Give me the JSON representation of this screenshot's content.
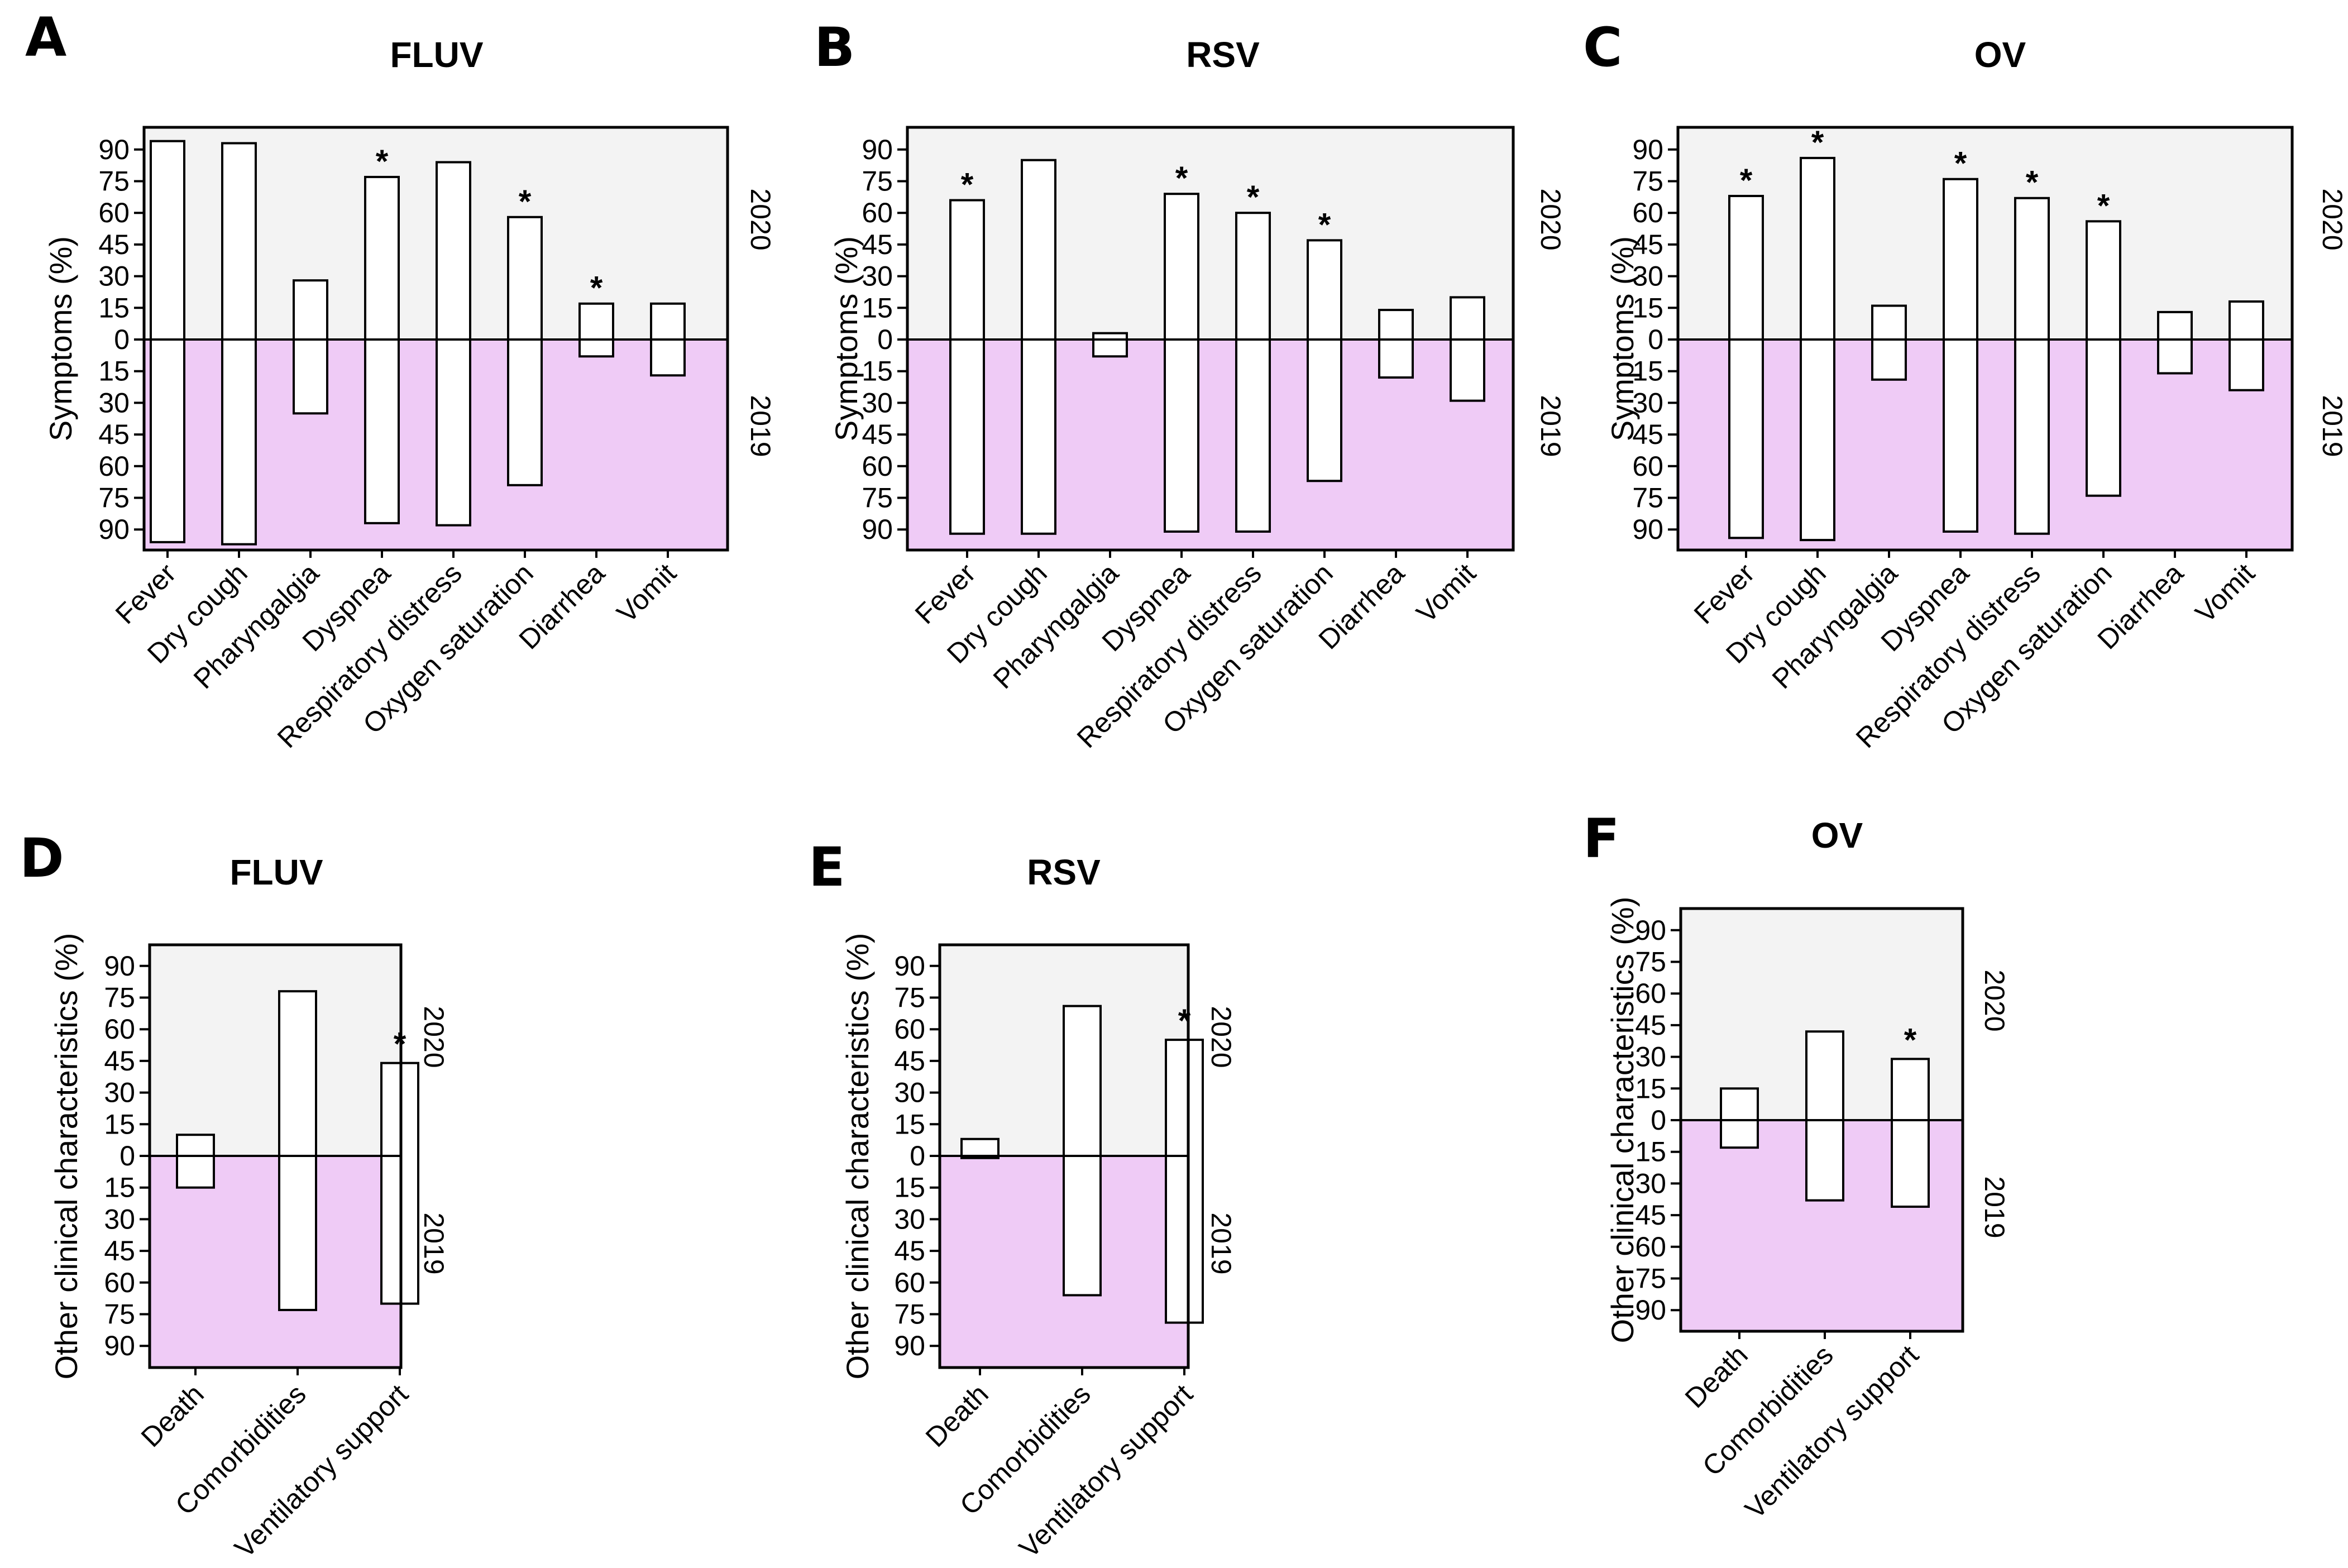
{
  "colors": {
    "top_bg": "#f3f3f3",
    "bottom_bg": "#efcbf6",
    "bar_fill": "#ffffff",
    "stroke": "#000000"
  },
  "chart_data": [
    {
      "panel": "A",
      "title": "FLUV",
      "type": "bar",
      "ylabel": "Symptoms (%)",
      "ylim": [
        -100,
        100
      ],
      "yticks": [
        "90",
        "75",
        "60",
        "45",
        "30",
        "15",
        "0",
        "15",
        "30",
        "45",
        "60",
        "75",
        "90"
      ],
      "top_label": "2020",
      "bottom_label": "2019",
      "categories": [
        "Fever",
        "Dry cough",
        "Pharyngalgia",
        "Dyspnea",
        "Respiratory distress",
        "Oxygen saturation",
        "Diarrhea",
        "Vomit"
      ],
      "series": [
        {
          "name": "2020",
          "values": [
            94,
            93,
            28,
            77,
            84,
            58,
            17,
            17
          ]
        },
        {
          "name": "2019",
          "values": [
            96,
            97,
            35,
            87,
            88,
            69,
            8,
            17
          ]
        }
      ],
      "significance": [
        "",
        "",
        "",
        "*",
        "",
        "*",
        "*",
        ""
      ]
    },
    {
      "panel": "B",
      "title": "RSV",
      "type": "bar",
      "ylabel": "Symptoms (%)",
      "ylim": [
        -100,
        100
      ],
      "yticks": [
        "90",
        "75",
        "60",
        "45",
        "30",
        "15",
        "0",
        "15",
        "30",
        "45",
        "60",
        "75",
        "90"
      ],
      "top_label": "2020",
      "bottom_label": "2019",
      "categories": [
        "Fever",
        "Dry cough",
        "Pharyngalgia",
        "Dyspnea",
        "Respiratory distress",
        "Oxygen saturation",
        "Diarrhea",
        "Vomit"
      ],
      "series": [
        {
          "name": "2020",
          "values": [
            66,
            85,
            3,
            69,
            60,
            47,
            14,
            20
          ]
        },
        {
          "name": "2019",
          "values": [
            92,
            92,
            8,
            91,
            91,
            67,
            18,
            29
          ]
        }
      ],
      "significance": [
        "*",
        "",
        "",
        "*",
        "*",
        "*",
        "",
        ""
      ]
    },
    {
      "panel": "C",
      "title": "OV",
      "type": "bar",
      "ylabel": "Symptoms (%)",
      "ylim": [
        -100,
        100
      ],
      "yticks": [
        "90",
        "75",
        "60",
        "45",
        "30",
        "15",
        "0",
        "15",
        "30",
        "45",
        "60",
        "75",
        "90"
      ],
      "top_label": "2020",
      "bottom_label": "2019",
      "categories": [
        "Fever",
        "Dry cough",
        "Pharyngalgia",
        "Dyspnea",
        "Respiratory distress",
        "Oxygen saturation",
        "Diarrhea",
        "Vomit"
      ],
      "series": [
        {
          "name": "2020",
          "values": [
            68,
            86,
            16,
            76,
            67,
            56,
            13,
            18
          ]
        },
        {
          "name": "2019",
          "values": [
            94,
            95,
            19,
            91,
            92,
            74,
            16,
            24
          ]
        }
      ],
      "significance": [
        "*",
        "*",
        "",
        "*",
        "*",
        "*",
        "",
        ""
      ]
    },
    {
      "panel": "D",
      "title": "FLUV",
      "type": "bar",
      "ylabel": "Other clinical characteristics (%)",
      "ylim": [
        -100,
        100
      ],
      "yticks": [
        "90",
        "75",
        "60",
        "45",
        "30",
        "15",
        "0",
        "15",
        "30",
        "45",
        "60",
        "75",
        "90"
      ],
      "top_label": "2020",
      "bottom_label": "2019",
      "categories": [
        "Death",
        "Comorbidities",
        "Ventilatory support"
      ],
      "series": [
        {
          "name": "2020",
          "values": [
            10,
            78,
            44
          ]
        },
        {
          "name": "2019",
          "values": [
            15,
            73,
            70
          ]
        }
      ],
      "significance": [
        "",
        "",
        "*"
      ]
    },
    {
      "panel": "E",
      "title": "RSV",
      "type": "bar",
      "ylabel": "Other clinical characteristics (%)",
      "ylim": [
        -100,
        100
      ],
      "yticks": [
        "90",
        "75",
        "60",
        "45",
        "30",
        "15",
        "0",
        "15",
        "30",
        "45",
        "60",
        "75",
        "90"
      ],
      "top_label": "2020",
      "bottom_label": "2019",
      "categories": [
        "Death",
        "Comorbidities",
        "Ventilatory support"
      ],
      "series": [
        {
          "name": "2020",
          "values": [
            8,
            71,
            55
          ]
        },
        {
          "name": "2019",
          "values": [
            1,
            66,
            79
          ]
        }
      ],
      "significance": [
        "",
        "",
        "*"
      ]
    },
    {
      "panel": "F",
      "title": "OV",
      "type": "bar",
      "ylabel": "Other clinical characteristics (%)",
      "ylim": [
        -100,
        100
      ],
      "yticks": [
        "90",
        "75",
        "60",
        "45",
        "30",
        "15",
        "0",
        "15",
        "30",
        "45",
        "60",
        "75",
        "90"
      ],
      "top_label": "2020",
      "bottom_label": "2019",
      "categories": [
        "Death",
        "Comorbidities",
        "Ventilatory support"
      ],
      "series": [
        {
          "name": "2020",
          "values": [
            15,
            42,
            29
          ]
        },
        {
          "name": "2019",
          "values": [
            13,
            38,
            41
          ]
        }
      ],
      "significance": [
        "",
        "",
        "*"
      ]
    }
  ]
}
